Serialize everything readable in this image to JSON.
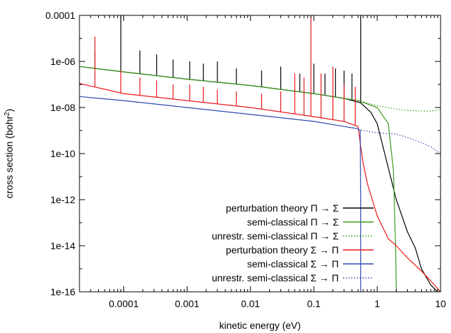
{
  "chart_data": {
    "type": "line",
    "title": "",
    "xlabel": "kinetic energy (eV)",
    "ylabel_prefix": "cross section (bohr",
    "ylabel_sup": "2",
    "ylabel_suffix": ")",
    "x_scale": "log",
    "y_scale": "log",
    "xlim": [
      2e-05,
      10
    ],
    "ylim": [
      1e-16,
      0.0001
    ],
    "x_ticks": [
      {
        "value": 0.0001,
        "label": "0.0001"
      },
      {
        "value": 0.001,
        "label": "0.001"
      },
      {
        "value": 0.01,
        "label": "0.01"
      },
      {
        "value": 0.1,
        "label": "0.1"
      },
      {
        "value": 1,
        "label": "1"
      },
      {
        "value": 10,
        "label": "10"
      }
    ],
    "y_ticks": [
      {
        "value": 1e-16,
        "label": "1e-16"
      },
      {
        "value": 1e-14,
        "label": "1e-14"
      },
      {
        "value": 1e-12,
        "label": "1e-12"
      },
      {
        "value": 1e-10,
        "label": "1e-10"
      },
      {
        "value": 1e-08,
        "label": "1e-08"
      },
      {
        "value": 1e-06,
        "label": "1e-06"
      },
      {
        "value": 0.0001,
        "label": "0.0001"
      }
    ],
    "grid": false,
    "legend_position": "bottom-right",
    "series": [
      {
        "name": "perturbation theory Π → Σ",
        "color": "#000000",
        "style": "solid",
        "x": [
          2e-05,
          0.0001,
          0.001,
          0.01,
          0.1,
          0.3,
          0.55,
          0.8,
          1.0,
          2.0,
          3.0,
          4.0,
          5.0,
          7.0,
          9.0,
          10.0
        ],
        "y": [
          6e-07,
          3.5e-07,
          1.7e-07,
          9e-08,
          4e-08,
          2.5e-08,
          1.6e-08,
          6e-09,
          2e-09,
          1e-12,
          4e-14,
          8e-15,
          1e-15,
          2e-16,
          1e-16,
          1e-16
        ],
        "peaks": [
          {
            "x": 3.5e-05,
            "y": 3e-06
          },
          {
            "x": 9e-05,
            "y": 0.0001
          },
          {
            "x": 0.00018,
            "y": 3e-06
          },
          {
            "x": 0.00033,
            "y": 2e-06
          },
          {
            "x": 0.0006,
            "y": 1.2e-06
          },
          {
            "x": 0.0011,
            "y": 1e-06
          },
          {
            "x": 0.0018,
            "y": 8e-07
          },
          {
            "x": 0.003,
            "y": 1e-06
          },
          {
            "x": 0.006,
            "y": 5e-07
          },
          {
            "x": 0.015,
            "y": 4e-07
          },
          {
            "x": 0.03,
            "y": 6e-07
          },
          {
            "x": 0.06,
            "y": 3e-07
          },
          {
            "x": 0.1,
            "y": 8e-07
          },
          {
            "x": 0.15,
            "y": 3e-07
          },
          {
            "x": 0.22,
            "y": 5e-07
          },
          {
            "x": 0.3,
            "y": 4e-07
          },
          {
            "x": 0.4,
            "y": 3e-07
          },
          {
            "x": 0.55,
            "y": 0.0001
          }
        ]
      },
      {
        "name": "semi-classical Π → Σ",
        "color": "#3a9a1c",
        "style": "solid",
        "x": [
          2e-05,
          0.0001,
          0.001,
          0.01,
          0.1,
          0.5,
          1.0,
          1.5,
          1.8,
          1.95,
          2.0
        ],
        "y": [
          6e-07,
          3.5e-07,
          1.7e-07,
          9e-08,
          4e-08,
          2e-08,
          1e-08,
          2e-09,
          2e-11,
          1e-14,
          1e-16
        ]
      },
      {
        "name": "unrestr. semi-classical Π → Σ",
        "color": "#3a9a1c",
        "style": "dotted",
        "x": [
          0.5,
          1.0,
          2.0,
          3.0,
          5.0,
          7.0,
          9.0,
          10.0
        ],
        "y": [
          2e-08,
          1.2e-08,
          8.5e-09,
          7.5e-09,
          7e-09,
          7e-09,
          7.5e-09,
          8e-09
        ]
      },
      {
        "name": "perturbation theory Σ → Π",
        "color": "#e8161b",
        "style": "solid",
        "x": [
          2e-05,
          0.0001,
          0.001,
          0.01,
          0.1,
          0.3,
          0.5,
          0.55,
          0.6,
          0.7,
          1.0,
          1.5,
          2.0,
          3.0,
          5.0,
          8.0,
          10.0
        ],
        "y": [
          1.1e-07,
          4e-08,
          2e-08,
          1e-08,
          4e-09,
          2.5e-09,
          1.5e-09,
          2e-10,
          4e-11,
          5e-12,
          2e-13,
          2e-14,
          1e-14,
          3e-15,
          8e-16,
          2e-16,
          1e-16
        ],
        "peaks": [
          {
            "x": 3.5e-05,
            "y": 1.2e-05
          },
          {
            "x": 9e-05,
            "y": 4e-07
          },
          {
            "x": 0.00018,
            "y": 2e-07
          },
          {
            "x": 0.00033,
            "y": 1.5e-07
          },
          {
            "x": 0.0006,
            "y": 1e-07
          },
          {
            "x": 0.0011,
            "y": 1e-07
          },
          {
            "x": 0.0018,
            "y": 8e-08
          },
          {
            "x": 0.003,
            "y": 6e-08
          },
          {
            "x": 0.006,
            "y": 5e-08
          },
          {
            "x": 0.015,
            "y": 4e-08
          },
          {
            "x": 0.03,
            "y": 5e-08
          },
          {
            "x": 0.05,
            "y": 3e-07
          },
          {
            "x": 0.07,
            "y": 2e-07
          },
          {
            "x": 0.09,
            "y": 0.0001
          },
          {
            "x": 0.13,
            "y": 3e-07
          },
          {
            "x": 0.2,
            "y": 6e-07
          },
          {
            "x": 0.3,
            "y": 1e-07
          },
          {
            "x": 0.45,
            "y": 8e-08
          }
        ]
      },
      {
        "name": "semi-classical Σ → Π",
        "color": "#2d48b0",
        "style": "solid",
        "x": [
          2e-05,
          0.0001,
          0.001,
          0.01,
          0.1,
          0.3,
          0.5,
          0.54,
          0.55,
          0.55
        ],
        "y": [
          3e-08,
          2e-08,
          1e-08,
          5e-09,
          2.5e-09,
          1.5e-09,
          1.2e-09,
          1e-09,
          1e-12,
          1e-16
        ]
      },
      {
        "name": "unrestr. semi-classical Σ → Π",
        "color": "#2d48b0",
        "style": "dotted",
        "x": [
          0.5,
          1.0,
          2.0,
          3.0,
          5.0,
          7.0,
          9.0,
          10.0
        ],
        "y": [
          1.1e-09,
          8e-10,
          7e-10,
          5e-10,
          3e-10,
          2e-10,
          1.2e-10,
          1e-10
        ]
      }
    ]
  }
}
